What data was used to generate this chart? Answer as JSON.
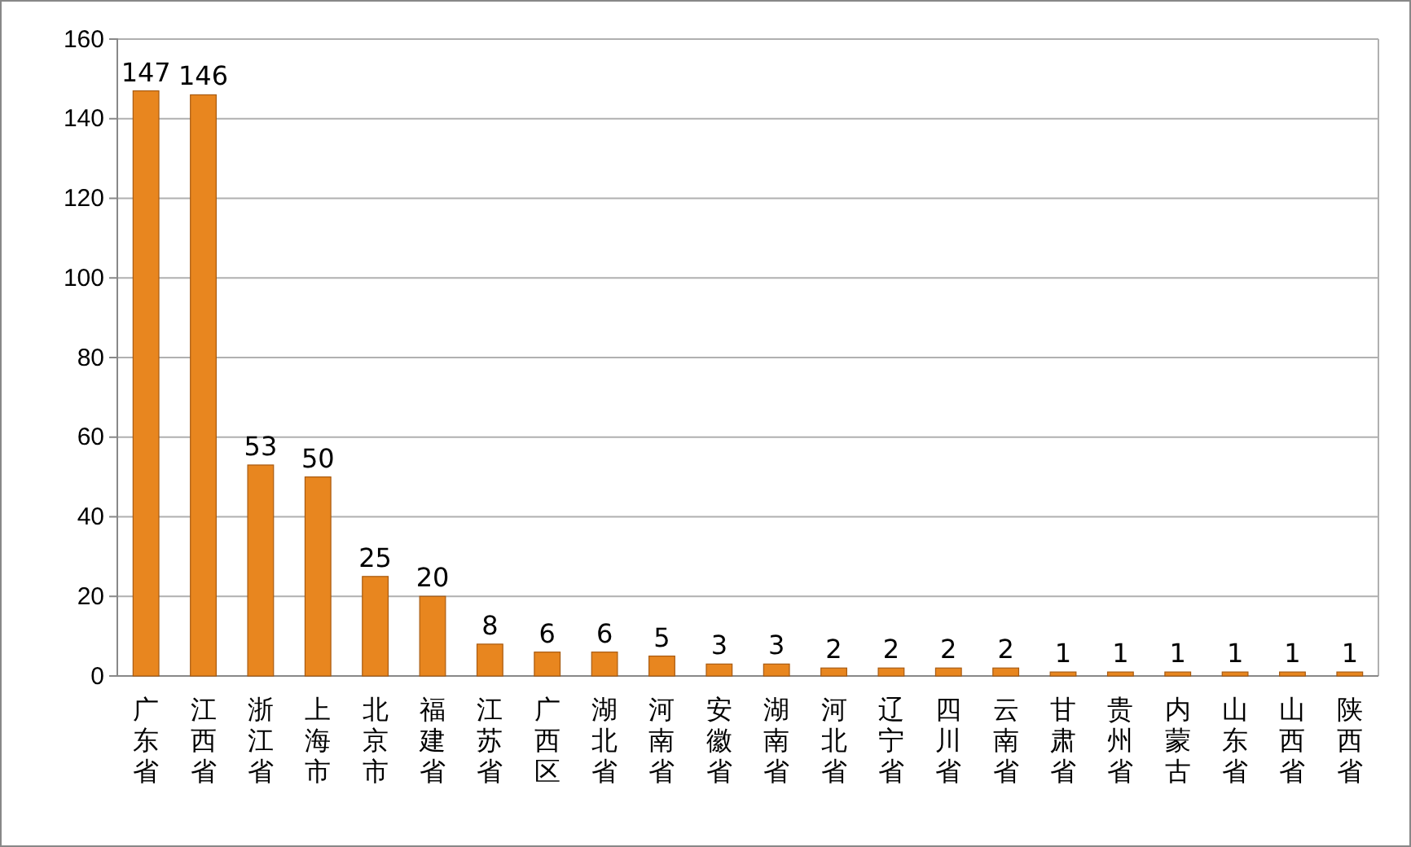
{
  "chart_data": {
    "type": "bar",
    "categories": [
      "广东省",
      "江西省",
      "浙江省",
      "上海市",
      "北京市",
      "福建省",
      "江苏省",
      "广西区",
      "湖北省",
      "河南省",
      "安徽省",
      "湖南省",
      "河北省",
      "辽宁省",
      "四川省",
      "云南省",
      "甘肃省",
      "贵州省",
      "内蒙古",
      "山东省",
      "山西省",
      "陕西省"
    ],
    "values": [
      147,
      146,
      53,
      50,
      25,
      20,
      8,
      6,
      6,
      5,
      3,
      3,
      2,
      2,
      2,
      2,
      1,
      1,
      1,
      1,
      1,
      1
    ],
    "color": "#e8861f",
    "ylim": [
      0,
      160
    ],
    "yticks": [
      0,
      20,
      40,
      60,
      80,
      100,
      120,
      140,
      160
    ],
    "grid": "y",
    "data_labels": true
  }
}
